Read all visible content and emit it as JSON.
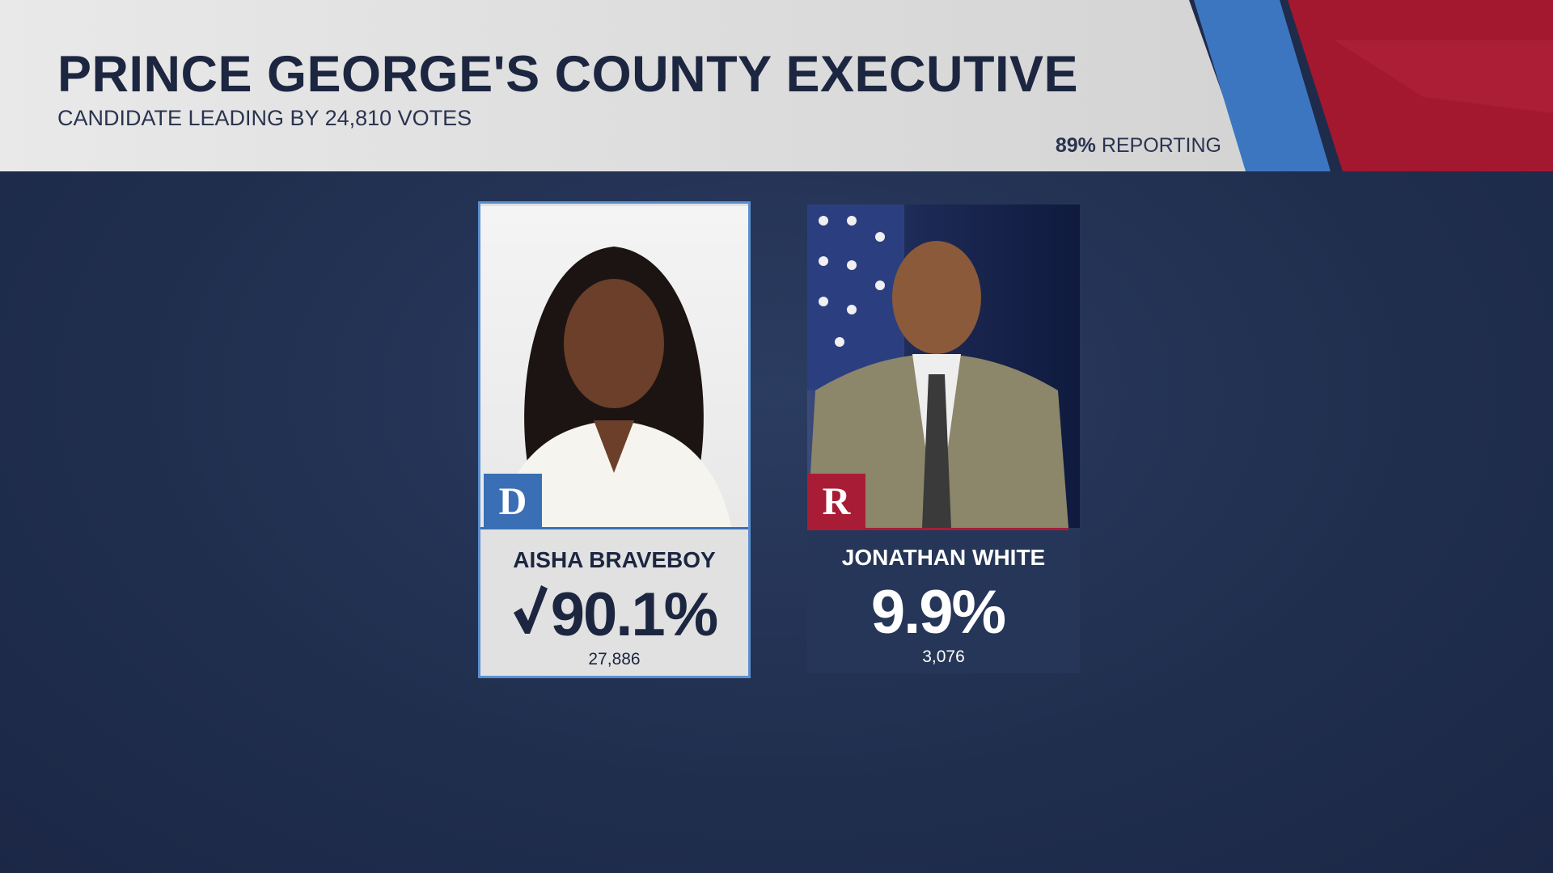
{
  "header": {
    "title": "PRINCE GEORGE'S COUNTY EXECUTIVE",
    "subtitle": "CANDIDATE LEADING BY 24,810 VOTES",
    "reporting_percent": "89%",
    "reporting_label": "REPORTING"
  },
  "candidates": [
    {
      "party": "D",
      "name": "AISHA BRAVEBOY",
      "percent": "90.1%",
      "votes": "27,886",
      "winner": true
    },
    {
      "party": "R",
      "name": "JONATHAN WHITE",
      "percent": "9.9%",
      "votes": "3,076",
      "winner": false
    }
  ]
}
